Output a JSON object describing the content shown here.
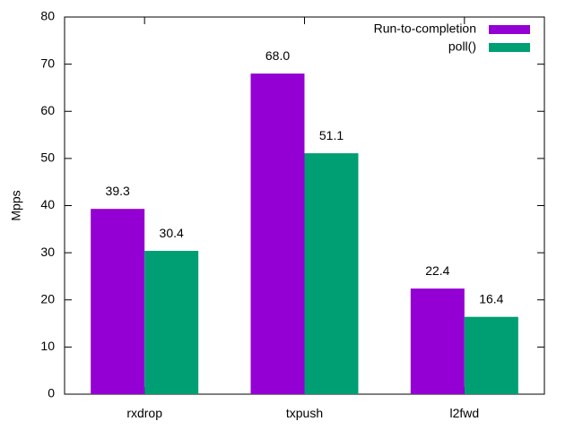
{
  "chart_data": {
    "type": "bar",
    "categories": [
      "rxdrop",
      "txpush",
      "l2fwd"
    ],
    "series": [
      {
        "name": "Run-to-completion",
        "color": "#9400d3",
        "values": [
          39.3,
          68.0,
          22.4
        ]
      },
      {
        "name": "poll()",
        "color": "#009e73",
        "values": [
          30.4,
          51.1,
          16.4
        ]
      }
    ],
    "data_labels": [
      [
        "39.3",
        "68.0",
        "22.4"
      ],
      [
        "30.4",
        "51.1",
        "16.4"
      ]
    ],
    "ylabel": "Mpps",
    "xlabel": "",
    "title": "",
    "ylim": [
      0,
      80
    ],
    "yticks": [
      0,
      10,
      20,
      30,
      40,
      50,
      60,
      70,
      80
    ],
    "legend_position": "top-right",
    "grid": false
  }
}
